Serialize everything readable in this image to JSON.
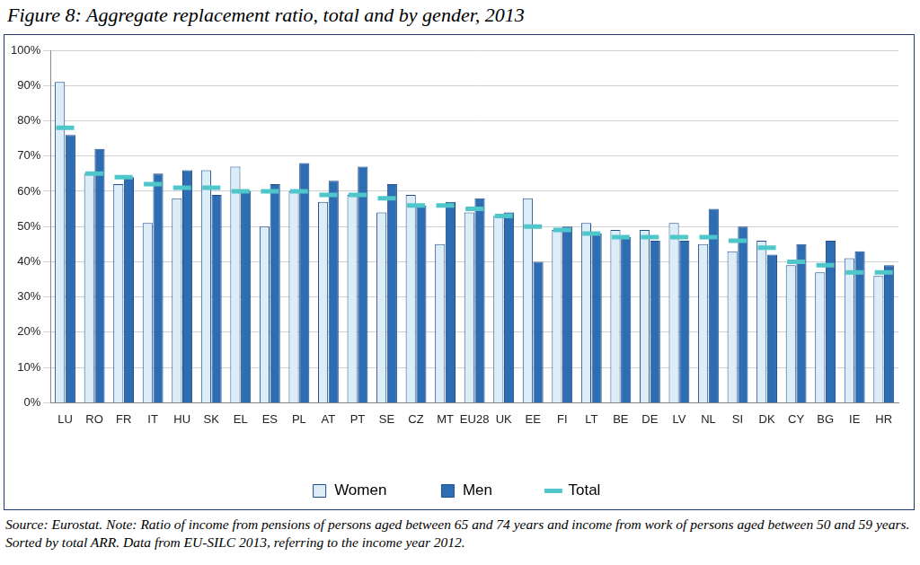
{
  "chart_data": {
    "type": "bar",
    "title": "Figure 8: Aggregate replacement ratio, total and by gender, 2013",
    "source_note": "Source: Eurostat. Note: Ratio of income from pensions of persons aged between 65 and 74 years and income from work of persons aged between 50 and 59 years. Sorted by total ARR. Data from EU-SILC 2013, referring to the income year 2012.",
    "categories": [
      "LU",
      "RO",
      "FR",
      "IT",
      "HU",
      "SK",
      "EL",
      "ES",
      "PL",
      "AT",
      "PT",
      "SE",
      "CZ",
      "MT",
      "EU28",
      "UK",
      "EE",
      "FI",
      "LT",
      "BE",
      "DE",
      "LV",
      "NL",
      "SI",
      "DK",
      "CY",
      "BG",
      "IE",
      "HR"
    ],
    "series": [
      {
        "name": "Women",
        "color": "#dcedf8",
        "type": "bar",
        "values": [
          91,
          65,
          62,
          51,
          58,
          66,
          67,
          50,
          60,
          57,
          59,
          54,
          59,
          45,
          54,
          53,
          58,
          49,
          51,
          49,
          49,
          51,
          45,
          43,
          46,
          39,
          37,
          41,
          36
        ]
      },
      {
        "name": "Men",
        "color": "#2f6db3",
        "type": "bar",
        "values": [
          76,
          72,
          64,
          65,
          66,
          59,
          60,
          62,
          68,
          63,
          67,
          62,
          56,
          57,
          58,
          54,
          40,
          50,
          48,
          47,
          46,
          46,
          55,
          50,
          42,
          45,
          46,
          43,
          39
        ]
      },
      {
        "name": "Total",
        "color": "#4fc6c9",
        "type": "line",
        "marker": "line",
        "values": [
          78,
          65,
          64,
          62,
          61,
          61,
          60,
          60,
          60,
          59,
          59,
          58,
          56,
          56,
          55,
          53,
          50,
          49,
          48,
          47,
          47,
          47,
          47,
          46,
          44,
          40,
          39,
          37,
          37
        ]
      }
    ],
    "ylim": [
      0,
      100
    ],
    "yticks": [
      {
        "value": 0,
        "label": "0%"
      },
      {
        "value": 10,
        "label": "10%"
      },
      {
        "value": 20,
        "label": "20%"
      },
      {
        "value": 30,
        "label": "30%"
      },
      {
        "value": 40,
        "label": "40%"
      },
      {
        "value": 50,
        "label": "50%"
      },
      {
        "value": 60,
        "label": "60%"
      },
      {
        "value": 70,
        "label": "70%"
      },
      {
        "value": 80,
        "label": "80%"
      },
      {
        "value": 90,
        "label": "90%"
      },
      {
        "value": 100,
        "label": "100%"
      }
    ],
    "grid": true,
    "legend": "bottom"
  }
}
